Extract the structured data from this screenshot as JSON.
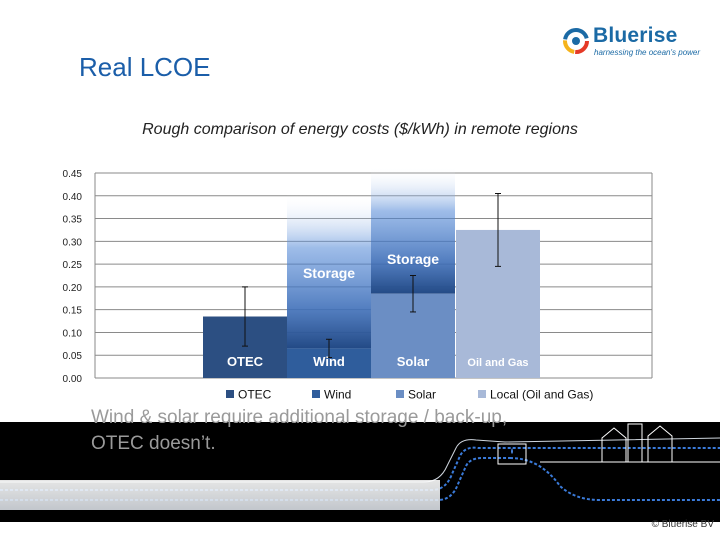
{
  "slide": {
    "title": "Real LCOE",
    "logo_name": "Bluerise",
    "logo_tagline": "harnessing the ocean's power",
    "caption_line1": "Wind & solar require additional storage / back-up,",
    "caption_line2": "OTEC doesn’t.",
    "copyright": "© Bluerise BV"
  },
  "colors": {
    "title": "#1b5ea9",
    "otec": "#2c4f82",
    "wind": "#2f5d9c",
    "solar": "#6b8ec4",
    "oil_gas": "#a8b9d8",
    "storage_top": "#4f86d6"
  },
  "chart_data": {
    "type": "bar",
    "title": "Rough comparison of energy costs ($/kWh) in remote regions",
    "ylim": [
      0,
      0.45
    ],
    "yticks": [
      "0.00",
      "0.05",
      "0.10",
      "0.15",
      "0.20",
      "0.25",
      "0.30",
      "0.35",
      "0.40",
      "0.45"
    ],
    "grid": true,
    "legend_placement": "bottom",
    "series": [
      {
        "name": "OTEC",
        "bar_label": "OTEC",
        "value": 0.135,
        "err_low": 0.07,
        "err_high": 0.2
      },
      {
        "name": "Wind",
        "bar_label": "Wind",
        "value": 0.065,
        "err_low": 0.045,
        "err_high": 0.085,
        "storage_label": "Storage",
        "storage_extra": 0.34
      },
      {
        "name": "Solar",
        "bar_label": "Solar",
        "value": 0.185,
        "err_low": 0.145,
        "err_high": 0.225,
        "storage_label": "Storage",
        "storage_extra": 0.28
      },
      {
        "name": "Local (Oil and Gas)",
        "bar_label": "Oil and Gas",
        "value": 0.325,
        "err_low": 0.245,
        "err_high": 0.405
      }
    ]
  }
}
